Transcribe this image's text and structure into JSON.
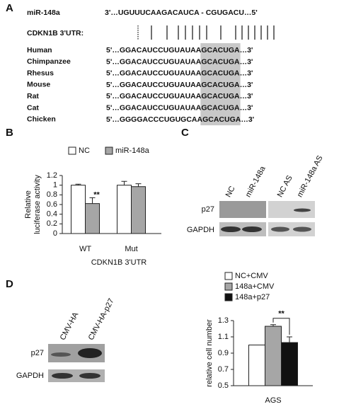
{
  "panel_letters": [
    "A",
    "B",
    "C",
    "D"
  ],
  "panel_a": {
    "mirna_label": "miR-148a",
    "mirna_seq": "3'…UGUUUCAAGACAUCA - CGUGACU…5'",
    "utr_label": "CDKN1B 3'UTR:",
    "species": [
      {
        "name": "Human",
        "seq_start": "5'…GGACAUCCUGUAUAA",
        "seed": "GCACUGA",
        "seq_end": "…3'"
      },
      {
        "name": "Chimpanzee",
        "seq_start": "5'…GGACAUCCUGUAUAA",
        "seed": "GCACUGA",
        "seq_end": "…3'"
      },
      {
        "name": "Rhesus",
        "seq_start": "5'…GGACAUCCUGUAUAA",
        "seed": "GCACUGA",
        "seq_end": "…3'"
      },
      {
        "name": "Mouse",
        "seq_start": "5'…GGACAUCCUGUAUAA",
        "seed": "GCACUGA",
        "seq_end": "…3'"
      },
      {
        "name": "Rat",
        "seq_start": "5'…GGACAUCCUGUAUAA",
        "seed": "GCACUGA",
        "seq_end": "…3'"
      },
      {
        "name": "Cat",
        "seq_start": "5'…GGACAUCCUGUAUAA",
        "seed": "GCACUGA",
        "seq_end": "…3'"
      },
      {
        "name": "Chicken",
        "seq_start": "5'…GGGGACCCUGUGCAA",
        "seed": "GCACUGA",
        "seq_end": "…3'"
      }
    ]
  },
  "panel_c": {
    "lanes": [
      "NC",
      "miR-148a",
      "NC AS",
      "miR-148a AS"
    ],
    "rows": [
      "p27",
      "GAPDH"
    ]
  },
  "panel_d_blot": {
    "lanes": [
      "CMV-HA",
      "CMV-HA-p27"
    ],
    "rows": [
      "p27",
      "GAPDH"
    ]
  },
  "chart_data": [
    {
      "type": "bar",
      "ylabel": [
        "Relative",
        "luciferase activity"
      ],
      "xlabel": "CDKN1B 3'UTR",
      "categories": [
        "WT",
        "Mut"
      ],
      "series": [
        {
          "name": "NC",
          "color": "#ffffff",
          "values": [
            1.0,
            1.0
          ],
          "errors": [
            0.02,
            0.08
          ]
        },
        {
          "name": "miR-148a",
          "color": "#a6a6a6",
          "values": [
            0.62,
            0.97
          ],
          "errors": [
            0.12,
            0.06
          ]
        }
      ],
      "ylim": [
        0,
        1.2
      ],
      "yticks": [
        0,
        0.2,
        0.4,
        0.6,
        0.8,
        1,
        1.2
      ],
      "legend": "horizontal",
      "annotation": "**"
    },
    {
      "type": "bar",
      "ylabel": "relative cell number",
      "categories": [
        "AGS"
      ],
      "series": [
        {
          "name": "NC+CMV",
          "color": "#ffffff",
          "values": [
            1.0
          ],
          "errors": [
            0
          ]
        },
        {
          "name": "148a+CMV",
          "color": "#a6a6a6",
          "values": [
            1.23
          ],
          "errors": [
            0.02
          ]
        },
        {
          "name": "148a+p27",
          "color": "#111111",
          "values": [
            1.03
          ],
          "errors": [
            0.07
          ]
        }
      ],
      "ylim": [
        0.5,
        1.3
      ],
      "yticks": [
        0.5,
        0.7,
        0.9,
        1.1,
        1.3
      ],
      "legend": "vertical",
      "annotation": "**"
    }
  ]
}
